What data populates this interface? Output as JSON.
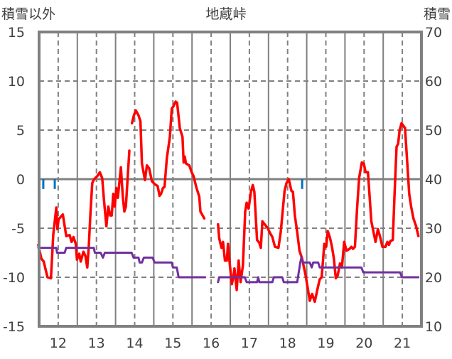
{
  "chart_data": {
    "type": "line",
    "title": "地蔵峠",
    "ylabel_left": "積雪以外",
    "ylabel_right": "積雪",
    "xlim": [
      11.5,
      21.5
    ],
    "ylim_left": [
      -15,
      15
    ],
    "ylim_right": [
      10,
      70
    ],
    "x_ticks": [
      12,
      13,
      14,
      15,
      16,
      17,
      18,
      19,
      20,
      21
    ],
    "y_ticks_left": [
      15,
      10,
      5,
      0,
      -5,
      -10,
      -15
    ],
    "y_ticks_right": [
      70,
      60,
      50,
      40,
      30,
      20,
      10
    ],
    "grid": true,
    "colors": {
      "temperature": "#ff0000",
      "snow_depth": "#7030a0",
      "markers": "#0070c0",
      "grid": "#808080"
    },
    "series": [
      {
        "name": "temperature",
        "axis": "left",
        "segments": [
          [
            [
              11.48,
              -6.7
            ],
            [
              11.56,
              -8.1
            ],
            [
              11.62,
              -8.4
            ],
            [
              11.72,
              -10.0
            ],
            [
              11.81,
              -10.1
            ],
            [
              11.87,
              -5.7
            ],
            [
              11.95,
              -2.9
            ],
            [
              11.98,
              -5.1
            ],
            [
              12.01,
              -4.1
            ],
            [
              12.12,
              -3.6
            ],
            [
              12.21,
              -5.8
            ],
            [
              12.3,
              -5.7
            ],
            [
              12.35,
              -6.4
            ],
            [
              12.4,
              -5.9
            ],
            [
              12.46,
              -6.6
            ],
            [
              12.49,
              -8.2
            ],
            [
              12.55,
              -7.6
            ],
            [
              12.59,
              -8.4
            ],
            [
              12.66,
              -7.4
            ],
            [
              12.71,
              -7.8
            ],
            [
              12.76,
              -9.0
            ],
            [
              12.8,
              -6.9
            ],
            [
              12.84,
              -3.7
            ],
            [
              12.89,
              -0.4
            ],
            [
              12.94,
              0
            ],
            [
              13.02,
              0.3
            ],
            [
              13.09,
              0.7
            ],
            [
              13.15,
              0.1
            ],
            [
              13.2,
              -2.3
            ],
            [
              13.26,
              -4.8
            ],
            [
              13.31,
              -2.8
            ],
            [
              13.36,
              -3.7
            ],
            [
              13.4,
              -3.7
            ],
            [
              13.44,
              -1.5
            ],
            [
              13.48,
              -2.8
            ],
            [
              13.52,
              -0.9
            ],
            [
              13.56,
              -1.9
            ],
            [
              13.64,
              1.2
            ],
            [
              13.69,
              -1.8
            ],
            [
              13.73,
              -3.3
            ],
            [
              13.77,
              -2.8
            ],
            [
              13.86,
              2.9
            ]
          ],
          [
            [
              13.93,
              5.7
            ],
            [
              13.98,
              6.5
            ],
            [
              14.03,
              7.0
            ],
            [
              14.1,
              6.5
            ],
            [
              14.15,
              5.9
            ],
            [
              14.19,
              1.6
            ],
            [
              14.27,
              -0.1
            ],
            [
              14.32,
              1.4
            ],
            [
              14.38,
              1.1
            ],
            [
              14.45,
              -0.2
            ],
            [
              14.52,
              -0.5
            ],
            [
              14.6,
              -0.7
            ],
            [
              14.65,
              -1.7
            ],
            [
              14.69,
              -1.5
            ],
            [
              14.74,
              -0.9
            ],
            [
              14.78,
              -0.8
            ],
            [
              14.84,
              2.1
            ],
            [
              14.92,
              4.3
            ],
            [
              14.97,
              7.2
            ],
            [
              15.01,
              7.4
            ],
            [
              15.07,
              7.9
            ],
            [
              15.11,
              7.8
            ],
            [
              15.18,
              5.2
            ],
            [
              15.25,
              4.3
            ],
            [
              15.28,
              1.7
            ],
            [
              15.31,
              2.3
            ],
            [
              15.34,
              1.6
            ],
            [
              15.43,
              1.4
            ],
            [
              15.49,
              0.7
            ],
            [
              15.54,
              0.3
            ],
            [
              15.61,
              -0.8
            ],
            [
              15.69,
              -1.8
            ],
            [
              15.72,
              -3.3
            ],
            [
              15.82,
              -4.0
            ]
          ],
          [
            [
              16.18,
              -4.6
            ],
            [
              16.21,
              -6.0
            ],
            [
              16.27,
              -7.0
            ],
            [
              16.31,
              -6.4
            ],
            [
              16.36,
              -8.3
            ],
            [
              16.41,
              -8.3
            ],
            [
              16.44,
              -6.6
            ],
            [
              16.49,
              -8.8
            ],
            [
              16.54,
              -10.7
            ],
            [
              16.58,
              -10.0
            ],
            [
              16.61,
              -9.1
            ],
            [
              16.67,
              -11.3
            ],
            [
              16.72,
              -8.3
            ],
            [
              16.77,
              -10.5
            ],
            [
              16.83,
              -8.8
            ],
            [
              16.89,
              -3.3
            ],
            [
              16.93,
              -2.4
            ],
            [
              16.98,
              -3.0
            ],
            [
              17.04,
              -1.3
            ],
            [
              17.09,
              -0.6
            ],
            [
              17.13,
              -1.3
            ],
            [
              17.2,
              -6.2
            ],
            [
              17.26,
              -6.5
            ],
            [
              17.3,
              -7.0
            ],
            [
              17.34,
              -4.3
            ],
            [
              17.4,
              -4.6
            ],
            [
              17.48,
              -5.0
            ],
            [
              17.54,
              -5.5
            ],
            [
              17.6,
              -5.9
            ],
            [
              17.67,
              -6.9
            ],
            [
              17.76,
              -7.0
            ],
            [
              17.82,
              -5.4
            ],
            [
              17.86,
              -3.7
            ],
            [
              17.92,
              -1.2
            ],
            [
              17.97,
              -0.4
            ],
            [
              18.03,
              0
            ],
            [
              18.1,
              -1.2
            ],
            [
              18.14,
              -1.3
            ],
            [
              18.19,
              -3.7
            ],
            [
              18.25,
              -5.4
            ],
            [
              18.31,
              -7.3
            ],
            [
              18.38,
              -8.1
            ],
            [
              18.47,
              -9.8
            ],
            [
              18.53,
              -11.2
            ],
            [
              18.58,
              -12.4
            ],
            [
              18.64,
              -11.7
            ],
            [
              18.71,
              -12.5
            ],
            [
              18.78,
              -11.2
            ],
            [
              18.84,
              -10.2
            ],
            [
              18.89,
              -10.0
            ],
            [
              18.93,
              -8.1
            ],
            [
              18.96,
              -6.6
            ],
            [
              19.01,
              -6.9
            ],
            [
              19.05,
              -5.3
            ],
            [
              19.11,
              -6.0
            ],
            [
              19.16,
              -6.9
            ],
            [
              19.21,
              -8.1
            ],
            [
              19.26,
              -10.1
            ],
            [
              19.31,
              -9.8
            ],
            [
              19.37,
              -8.6
            ],
            [
              19.42,
              -9.0
            ],
            [
              19.48,
              -6.4
            ],
            [
              19.54,
              -7.3
            ],
            [
              19.62,
              -7.1
            ],
            [
              19.67,
              -6.9
            ],
            [
              19.71,
              -7.1
            ],
            [
              19.76,
              -6.9
            ],
            [
              19.82,
              -2.8
            ],
            [
              19.87,
              0.1
            ],
            [
              19.94,
              1.7
            ],
            [
              19.99,
              1.6
            ],
            [
              20.04,
              0.7
            ],
            [
              20.1,
              0.7
            ],
            [
              20.19,
              -4.3
            ],
            [
              20.3,
              -6.4
            ],
            [
              20.36,
              -5.1
            ],
            [
              20.42,
              -5.9
            ],
            [
              20.48,
              -6.9
            ],
            [
              20.56,
              -6.9
            ],
            [
              20.61,
              -6.4
            ],
            [
              20.65,
              -6.7
            ],
            [
              20.69,
              -6.3
            ],
            [
              20.75,
              -6.2
            ],
            [
              20.8,
              -1.3
            ],
            [
              20.85,
              3.3
            ],
            [
              20.89,
              3.6
            ],
            [
              20.93,
              5.0
            ],
            [
              20.98,
              5.7
            ],
            [
              21.07,
              5.2
            ],
            [
              21.13,
              1.6
            ],
            [
              21.18,
              -1.5
            ],
            [
              21.23,
              -2.8
            ],
            [
              21.29,
              -4.0
            ],
            [
              21.36,
              -4.8
            ],
            [
              21.42,
              -5.8
            ]
          ]
        ]
      },
      {
        "name": "snow_depth",
        "axis": "right",
        "segments": [
          [
            [
              11.48,
              26
            ],
            [
              11.95,
              26
            ],
            [
              11.97,
              25
            ],
            [
              12.17,
              25
            ],
            [
              12.21,
              26
            ],
            [
              12.93,
              26
            ],
            [
              12.96,
              25
            ],
            [
              13.11,
              25
            ],
            [
              13.17,
              24
            ],
            [
              13.22,
              25
            ],
            [
              13.92,
              25
            ],
            [
              13.97,
              24
            ],
            [
              14.1,
              24
            ],
            [
              14.13,
              23
            ],
            [
              14.19,
              23
            ],
            [
              14.24,
              24
            ],
            [
              14.47,
              24
            ],
            [
              14.52,
              23
            ],
            [
              14.97,
              23
            ],
            [
              15.0,
              22
            ],
            [
              15.1,
              22
            ],
            [
              15.15,
              20
            ],
            [
              15.84,
              20
            ]
          ],
          [
            [
              16.18,
              19
            ],
            [
              16.21,
              20
            ],
            [
              16.88,
              20
            ],
            [
              16.93,
              19
            ],
            [
              17.2,
              19
            ],
            [
              17.23,
              20
            ],
            [
              17.26,
              19
            ],
            [
              17.6,
              19
            ],
            [
              17.64,
              20
            ],
            [
              17.86,
              20
            ],
            [
              17.9,
              19
            ],
            [
              18.25,
              19
            ],
            [
              18.33,
              23
            ],
            [
              18.36,
              24
            ],
            [
              18.4,
              23
            ],
            [
              18.58,
              23
            ],
            [
              18.63,
              22
            ],
            [
              18.67,
              23
            ],
            [
              18.8,
              23
            ],
            [
              18.84,
              22
            ],
            [
              19.93,
              22
            ],
            [
              19.98,
              21
            ],
            [
              20.94,
              21
            ],
            [
              20.99,
              20
            ],
            [
              21.42,
              20
            ]
          ]
        ]
      }
    ],
    "markers": {
      "name": "markers",
      "axis": "left",
      "x": [
        11.61,
        11.91,
        18.38
      ],
      "from": 0,
      "to": -1
    }
  }
}
